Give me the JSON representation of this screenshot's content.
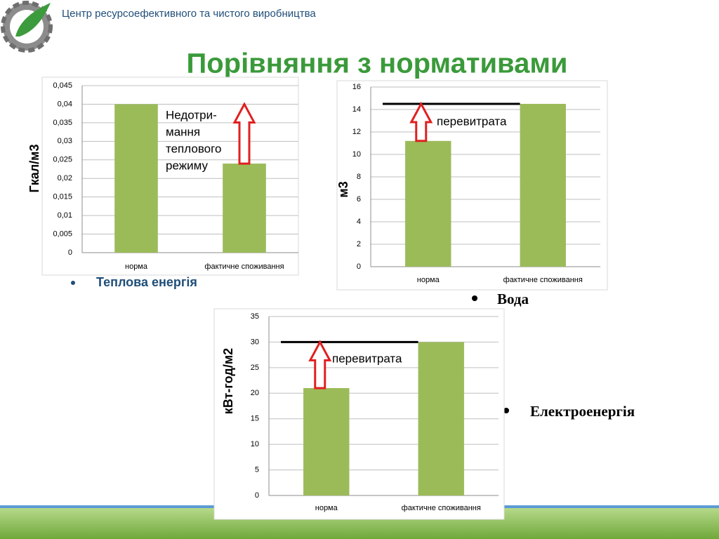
{
  "header": "Центр ресурсоефективного та чистого виробництва",
  "title": "Порівняння з нормативами",
  "bullets": [
    "Теплова енергія",
    "Вода",
    "Електроенергія"
  ],
  "chart_data": [
    {
      "type": "bar",
      "y_label": "Гкал/м3",
      "categories": [
        "норма",
        "фактичне споживання"
      ],
      "values": [
        0.04,
        0.024
      ],
      "color": "#9bbb59",
      "ylim": [
        0,
        0.045
      ],
      "grid": true,
      "yticks": [
        0,
        {
          "value": 0.005,
          "label": "0,005"
        },
        {
          "value": 0.01,
          "label": "0,01"
        },
        {
          "value": 0.015,
          "label": "0,015"
        },
        {
          "value": 0.02,
          "label": "0,02"
        },
        {
          "value": 0.025,
          "label": "0,025"
        },
        {
          "value": 0.03,
          "label": "0,03"
        },
        {
          "value": 0.035,
          "label": "0,035"
        },
        {
          "value": 0.04,
          "label": "0,04"
        },
        {
          "value": 0.045,
          "label": "0,045"
        }
      ],
      "annotation": [
        "Недотри-",
        "мання",
        "теплового",
        "режиму"
      ]
    },
    {
      "type": "bar",
      "y_label": "м3",
      "categories": [
        "норма",
        "фактичне споживання"
      ],
      "values": [
        11.2,
        14.5
      ],
      "color": "#9bbb59",
      "ylim": [
        0,
        16
      ],
      "grid": true,
      "yticks": [
        0,
        2,
        4,
        6,
        8,
        10,
        12,
        14,
        16
      ],
      "annotation": [
        "перевитрата"
      ]
    },
    {
      "type": "bar",
      "y_label": "кВт-год/м2",
      "categories": [
        "норма",
        "фактичне споживання"
      ],
      "values": [
        21,
        30
      ],
      "color": "#9bbb59",
      "ylim": [
        0,
        35
      ],
      "grid": true,
      "yticks": [
        0,
        5,
        10,
        15,
        20,
        25,
        30,
        35
      ],
      "annotation": [
        "перевитрата"
      ]
    }
  ]
}
